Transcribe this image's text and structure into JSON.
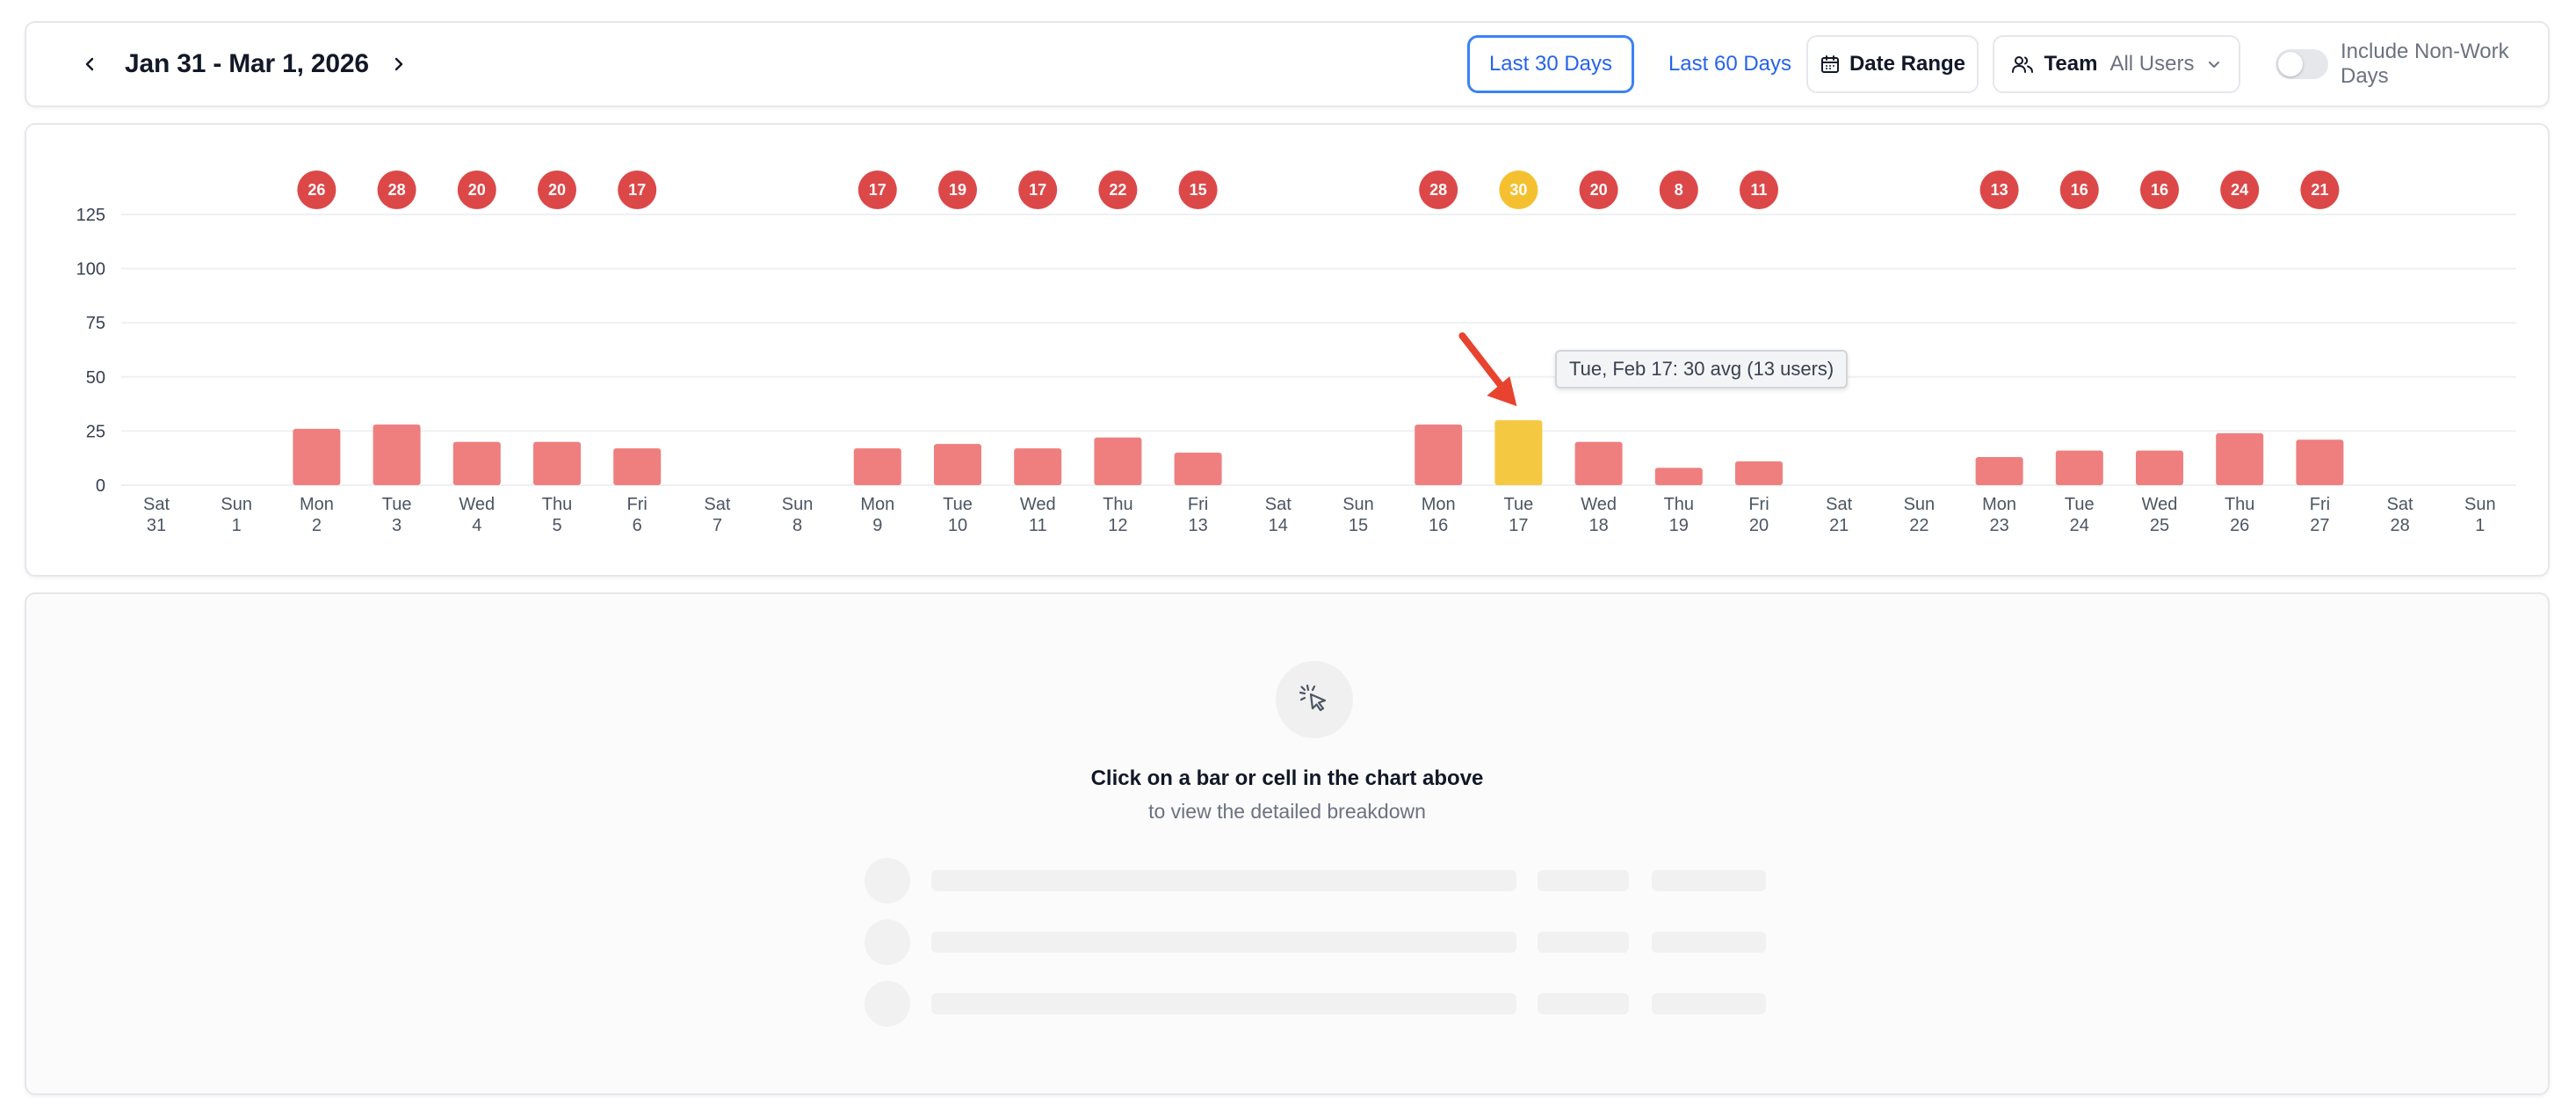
{
  "header": {
    "date_range": "Jan 31 - Mar 1, 2026",
    "btn_last30": "Last 30 Days",
    "btn_last60": "Last 60 Days",
    "btn_date_range": "Date Range",
    "team_label": "Team",
    "team_value": "All Users",
    "toggle_label": "Include Non-Work Days",
    "toggle_on": false,
    "active_range": "Last 30 Days"
  },
  "chart_data": {
    "type": "bar",
    "ylim": [
      0,
      125
    ],
    "yticks": [
      0,
      25,
      50,
      75,
      100,
      125
    ],
    "grid": true,
    "days": [
      {
        "dow": "Sat",
        "date": "31",
        "value": null
      },
      {
        "dow": "Sun",
        "date": "1",
        "value": null
      },
      {
        "dow": "Mon",
        "date": "2",
        "value": 26
      },
      {
        "dow": "Tue",
        "date": "3",
        "value": 28
      },
      {
        "dow": "Wed",
        "date": "4",
        "value": 20
      },
      {
        "dow": "Thu",
        "date": "5",
        "value": 20
      },
      {
        "dow": "Fri",
        "date": "6",
        "value": 17
      },
      {
        "dow": "Sat",
        "date": "7",
        "value": null
      },
      {
        "dow": "Sun",
        "date": "8",
        "value": null
      },
      {
        "dow": "Mon",
        "date": "9",
        "value": 17
      },
      {
        "dow": "Tue",
        "date": "10",
        "value": 19
      },
      {
        "dow": "Wed",
        "date": "11",
        "value": 17
      },
      {
        "dow": "Thu",
        "date": "12",
        "value": 22
      },
      {
        "dow": "Fri",
        "date": "13",
        "value": 15
      },
      {
        "dow": "Sat",
        "date": "14",
        "value": null
      },
      {
        "dow": "Sun",
        "date": "15",
        "value": null
      },
      {
        "dow": "Mon",
        "date": "16",
        "value": 28
      },
      {
        "dow": "Tue",
        "date": "17",
        "value": 30,
        "highlighted": true
      },
      {
        "dow": "Wed",
        "date": "18",
        "value": 20
      },
      {
        "dow": "Thu",
        "date": "19",
        "value": 8
      },
      {
        "dow": "Fri",
        "date": "20",
        "value": 11
      },
      {
        "dow": "Sat",
        "date": "21",
        "value": null
      },
      {
        "dow": "Sun",
        "date": "22",
        "value": null
      },
      {
        "dow": "Mon",
        "date": "23",
        "value": 13
      },
      {
        "dow": "Tue",
        "date": "24",
        "value": 16
      },
      {
        "dow": "Wed",
        "date": "25",
        "value": 16
      },
      {
        "dow": "Thu",
        "date": "26",
        "value": 24
      },
      {
        "dow": "Fri",
        "date": "27",
        "value": 21
      },
      {
        "dow": "Sat",
        "date": "28",
        "value": null
      },
      {
        "dow": "Sun",
        "date": "1",
        "value": null
      }
    ],
    "colors": {
      "bar": "#ef7f7f",
      "badge": "#dc4848",
      "highlight_bar": "#f5c842",
      "highlight_badge": "#f5c030",
      "highlight_badge_text": "#3a2a00",
      "grid": "#eef0f2",
      "arrow": "#e8432f"
    },
    "tooltip": "Tue, Feb 17: 30 avg (13 users)"
  },
  "detail": {
    "empty_title": "Click on a bar or cell in the chart above",
    "empty_subtitle": "to view the detailed breakdown",
    "pointer_icon": "pointer-click-icon"
  },
  "colors": {
    "accent": "#3b82f6",
    "border": "#e5e7eb"
  }
}
